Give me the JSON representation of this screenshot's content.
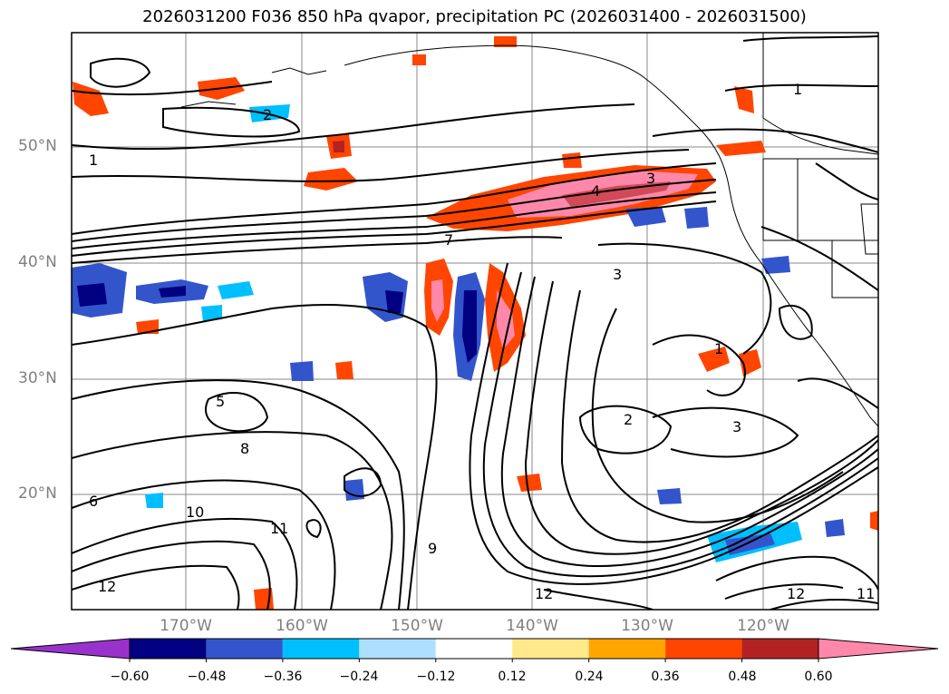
{
  "title": "2026031200 F036 850 hPa qvapor, precipitation PC (2026031400 - 2026031500)",
  "map": {
    "lat_labels": [
      "50°N",
      "40°N",
      "30°N",
      "20°N"
    ],
    "lon_labels": [
      "170°W",
      "160°W",
      "150°W",
      "140°W",
      "130°W",
      "120°W"
    ],
    "contour_labels": [
      "1",
      "2",
      "3",
      "4",
      "5",
      "6",
      "7",
      "8",
      "9",
      "10",
      "11",
      "12"
    ]
  },
  "colorbar": {
    "ticks": [
      "−0.60",
      "−0.48",
      "−0.36",
      "−0.24",
      "−0.12",
      "0.12",
      "0.24",
      "0.36",
      "0.48",
      "0.60"
    ],
    "colors": [
      "#9932CC",
      "#000080",
      "#3355CC",
      "#00BFFF",
      "#ADDFFF",
      "#FFFFFF",
      "#FFE98A",
      "#FFA500",
      "#FF4500",
      "#B22222",
      "#FF88AA"
    ]
  }
}
